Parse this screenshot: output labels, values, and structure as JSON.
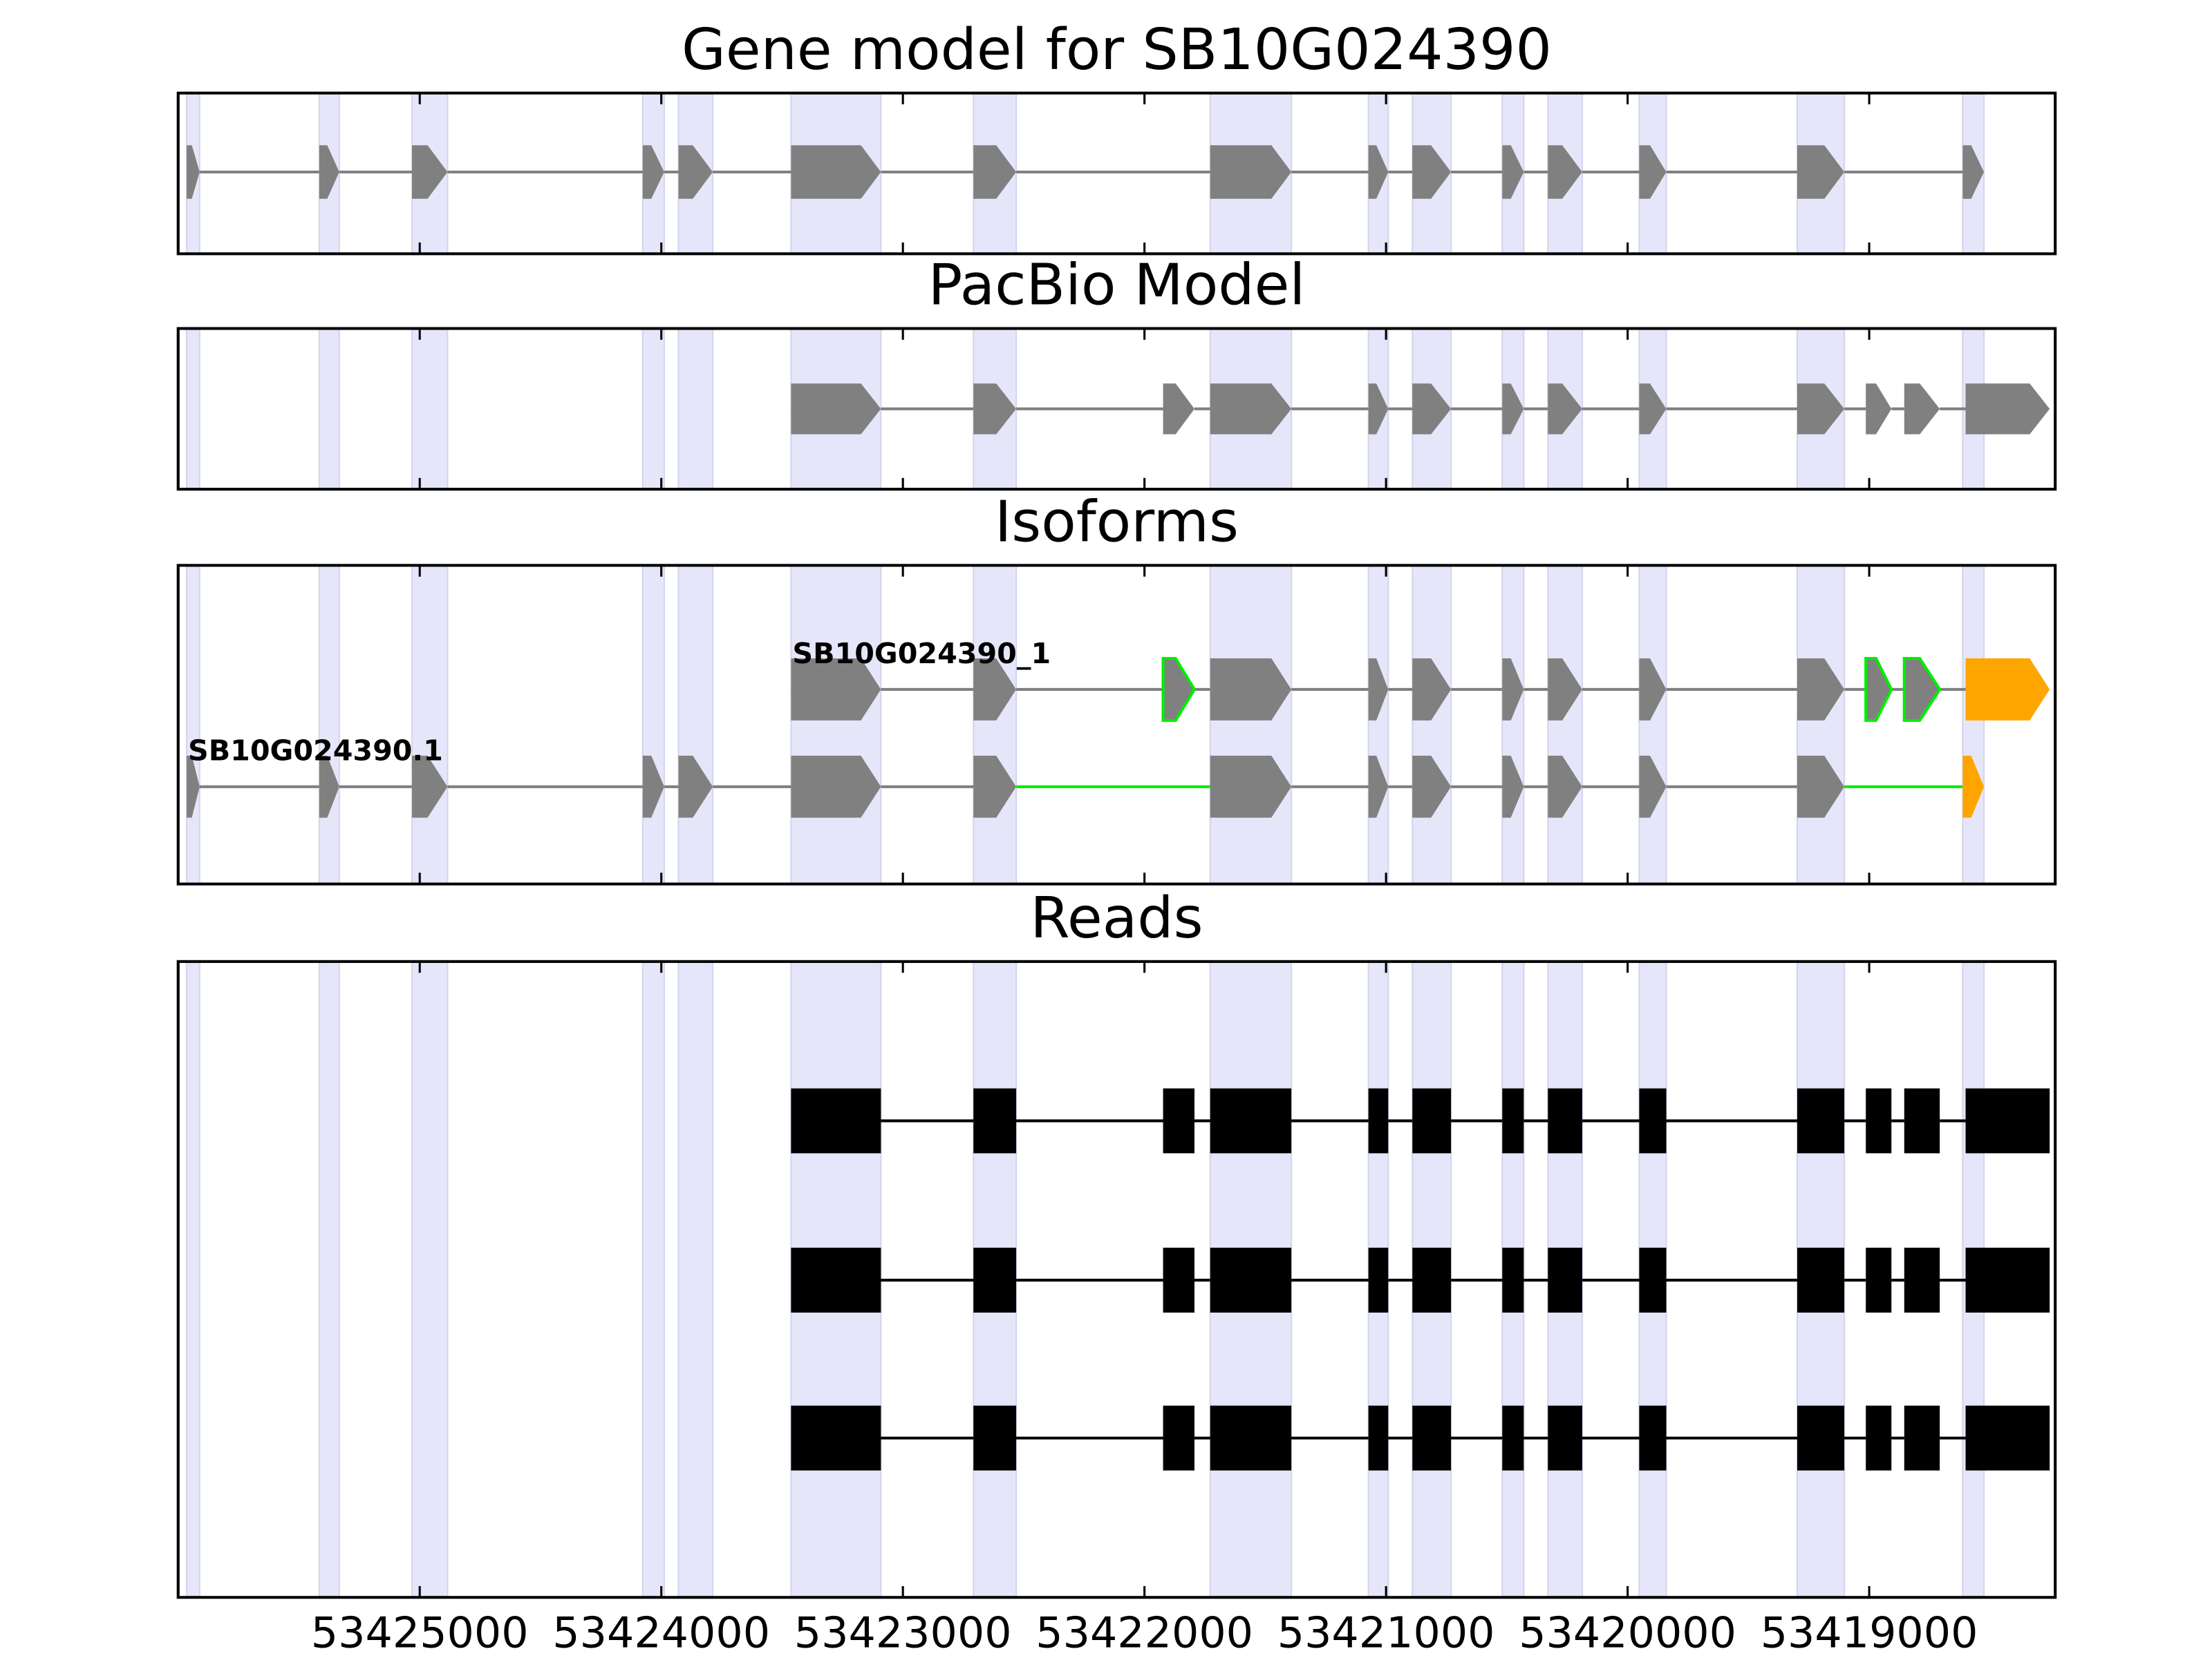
{
  "chart_data": {
    "type": "gene_tracks",
    "xlim": [
      53426000,
      53418230
    ],
    "xticks": [
      53425000,
      53424000,
      53423000,
      53422000,
      53421000,
      53420000,
      53419000
    ],
    "region_color": "#e6e6fa",
    "regions": [
      [
        53425965,
        53425911
      ],
      [
        53425416,
        53425333
      ],
      [
        53425032,
        53424885
      ],
      [
        53424077,
        53423988
      ],
      [
        53423929,
        53423787
      ],
      [
        53423463,
        53423091
      ],
      [
        53422708,
        53422531
      ],
      [
        53421728,
        53421392
      ],
      [
        53421073,
        53420991
      ],
      [
        53420891,
        53420731
      ],
      [
        53420519,
        53420430
      ],
      [
        53420330,
        53420188
      ],
      [
        53419952,
        53419840
      ],
      [
        53419298,
        53419103
      ],
      [
        53418613,
        53418525
      ]
    ],
    "panels": [
      {
        "title": "Gene model for SB10G024390",
        "shape": "arrow",
        "tracks": [
          {
            "color": "#808080",
            "intron_color": "#808080",
            "exons": [
              [
                53425965,
                53425911
              ],
              [
                53425416,
                53425333
              ],
              [
                53425032,
                53424885
              ],
              [
                53424077,
                53423988
              ],
              [
                53423929,
                53423787
              ],
              [
                53423463,
                53423091
              ],
              [
                53422708,
                53422531
              ],
              [
                53421728,
                53421392
              ],
              [
                53421073,
                53420991
              ],
              [
                53420891,
                53420731
              ],
              [
                53420519,
                53420430
              ],
              [
                53420330,
                53420188
              ],
              [
                53419952,
                53419840
              ],
              [
                53419298,
                53419103
              ],
              [
                53418613,
                53418525
              ]
            ]
          }
        ]
      },
      {
        "title": "PacBio Model",
        "shape": "arrow",
        "tracks": [
          {
            "color": "#808080",
            "intron_color": "#808080",
            "exons": [
              [
                53423463,
                53423091
              ],
              [
                53422708,
                53422531
              ],
              [
                53421923,
                53421793
              ],
              [
                53421728,
                53421392
              ],
              [
                53421073,
                53420991
              ],
              [
                53420891,
                53420731
              ],
              [
                53420519,
                53420430
              ],
              [
                53420330,
                53420188
              ],
              [
                53419952,
                53419840
              ],
              [
                53419298,
                53419103
              ],
              [
                53419014,
                53418908
              ],
              [
                53418855,
                53418708
              ],
              [
                53418601,
                53418253
              ]
            ]
          }
        ]
      },
      {
        "title": "Isoforms",
        "shape": "arrow",
        "tracks": [
          {
            "name": "SB10G024390_1",
            "exons": [
              [
                53423463,
                53423091
              ],
              [
                53422708,
                53422531
              ],
              [
                53421923,
                53421793
              ],
              [
                53421728,
                53421392
              ],
              [
                53421073,
                53420991
              ],
              [
                53420891,
                53420731
              ],
              [
                53420519,
                53420430
              ],
              [
                53420330,
                53420188
              ],
              [
                53419952,
                53419840
              ],
              [
                53419298,
                53419103
              ],
              [
                53419014,
                53418908
              ],
              [
                53418855,
                53418708
              ],
              [
                53418601,
                53418253
              ]
            ],
            "exon_fill": [
              "#808080",
              "#808080",
              "#808080",
              "#808080",
              "#808080",
              "#808080",
              "#808080",
              "#808080",
              "#808080",
              "#808080",
              "#808080",
              "#808080",
              "#ffa500"
            ],
            "exon_stroke": [
              "none",
              "none",
              "#00ee00",
              "none",
              "none",
              "none",
              "none",
              "none",
              "none",
              "none",
              "#00ee00",
              "#00ee00",
              "none"
            ],
            "intron_colors": [
              "#808080",
              "#808080",
              "#808080",
              "#808080",
              "#808080",
              "#808080",
              "#808080",
              "#808080",
              "#808080",
              "#808080",
              "#808080",
              "#808080"
            ]
          },
          {
            "name": "SB10G024390.1",
            "exons": [
              [
                53425965,
                53425911
              ],
              [
                53425416,
                53425333
              ],
              [
                53425032,
                53424885
              ],
              [
                53424077,
                53423988
              ],
              [
                53423929,
                53423787
              ],
              [
                53423463,
                53423091
              ],
              [
                53422708,
                53422531
              ],
              [
                53421728,
                53421392
              ],
              [
                53421073,
                53420991
              ],
              [
                53420891,
                53420731
              ],
              [
                53420519,
                53420430
              ],
              [
                53420330,
                53420188
              ],
              [
                53419952,
                53419840
              ],
              [
                53419298,
                53419103
              ],
              [
                53418613,
                53418525
              ]
            ],
            "exon_fill": [
              "#808080",
              "#808080",
              "#808080",
              "#808080",
              "#808080",
              "#808080",
              "#808080",
              "#808080",
              "#808080",
              "#808080",
              "#808080",
              "#808080",
              "#808080",
              "#808080",
              "#ffa500"
            ],
            "exon_stroke": [
              "none",
              "none",
              "none",
              "none",
              "none",
              "none",
              "none",
              "none",
              "none",
              "none",
              "none",
              "none",
              "none",
              "none",
              "none"
            ],
            "intron_colors": [
              "#808080",
              "#808080",
              "#808080",
              "#808080",
              "#808080",
              "#808080",
              "#00ee00",
              "#808080",
              "#808080",
              "#808080",
              "#808080",
              "#808080",
              "#808080",
              "#00ee00"
            ]
          }
        ]
      },
      {
        "title": "Reads",
        "shape": "box",
        "tracks": [
          {
            "color": "#000000",
            "intron_color": "#000000",
            "exons": [
              [
                53423463,
                53423091
              ],
              [
                53422708,
                53422531
              ],
              [
                53421923,
                53421793
              ],
              [
                53421728,
                53421392
              ],
              [
                53421073,
                53420991
              ],
              [
                53420891,
                53420731
              ],
              [
                53420519,
                53420430
              ],
              [
                53420330,
                53420188
              ],
              [
                53419952,
                53419840
              ],
              [
                53419298,
                53419103
              ],
              [
                53419014,
                53418908
              ],
              [
                53418855,
                53418708
              ],
              [
                53418601,
                53418253
              ]
            ]
          },
          {
            "color": "#000000",
            "intron_color": "#000000",
            "exons": [
              [
                53423463,
                53423091
              ],
              [
                53422708,
                53422531
              ],
              [
                53421923,
                53421793
              ],
              [
                53421728,
                53421392
              ],
              [
                53421073,
                53420991
              ],
              [
                53420891,
                53420731
              ],
              [
                53420519,
                53420430
              ],
              [
                53420330,
                53420188
              ],
              [
                53419952,
                53419840
              ],
              [
                53419298,
                53419103
              ],
              [
                53419014,
                53418908
              ],
              [
                53418855,
                53418708
              ],
              [
                53418601,
                53418253
              ]
            ]
          },
          {
            "color": "#000000",
            "intron_color": "#000000",
            "exons": [
              [
                53423463,
                53423091
              ],
              [
                53422708,
                53422531
              ],
              [
                53421923,
                53421793
              ],
              [
                53421728,
                53421392
              ],
              [
                53421073,
                53420991
              ],
              [
                53420891,
                53420731
              ],
              [
                53420519,
                53420430
              ],
              [
                53420330,
                53420188
              ],
              [
                53419952,
                53419840
              ],
              [
                53419298,
                53419103
              ],
              [
                53419014,
                53418908
              ],
              [
                53418855,
                53418708
              ],
              [
                53418601,
                53418253
              ]
            ]
          }
        ]
      }
    ]
  }
}
